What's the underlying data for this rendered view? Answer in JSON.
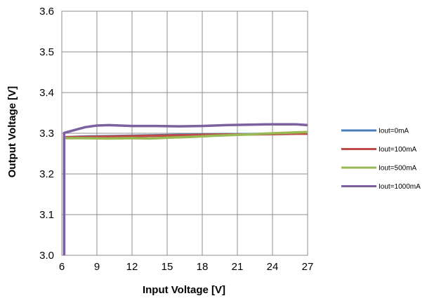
{
  "chart_data": {
    "type": "line",
    "xlabel": "Input Voltage [V]",
    "ylabel": "Output Voltage [V]",
    "xlim": [
      6,
      27
    ],
    "ylim": [
      3.0,
      3.6
    ],
    "x_ticks": [
      "6",
      "9",
      "12",
      "15",
      "18",
      "21",
      "24",
      "27"
    ],
    "y_ticks": [
      "3.0",
      "3.1",
      "3.2",
      "3.3",
      "3.4",
      "3.5",
      "3.6"
    ],
    "grid": true,
    "legend_position": "right",
    "series": [
      {
        "name": "Iout=0mA",
        "color": "#4A7EBB",
        "points": [
          [
            6.2,
            3.0
          ],
          [
            6.2,
            3.29
          ],
          [
            8,
            3.292
          ],
          [
            10,
            3.293
          ],
          [
            12,
            3.294
          ],
          [
            14,
            3.295
          ],
          [
            16,
            3.296
          ],
          [
            18,
            3.297
          ],
          [
            20,
            3.298
          ],
          [
            22,
            3.298
          ],
          [
            24,
            3.299
          ],
          [
            26,
            3.3
          ],
          [
            27,
            3.3
          ]
        ]
      },
      {
        "name": "Iout=100mA",
        "color": "#BE4B48",
        "points": [
          [
            6.2,
            3.0
          ],
          [
            6.2,
            3.29
          ],
          [
            8,
            3.291
          ],
          [
            10,
            3.292
          ],
          [
            12,
            3.293
          ],
          [
            14,
            3.294
          ],
          [
            16,
            3.295
          ],
          [
            18,
            3.296
          ],
          [
            20,
            3.297
          ],
          [
            22,
            3.297
          ],
          [
            24,
            3.298
          ],
          [
            26,
            3.299
          ],
          [
            27,
            3.299
          ]
        ]
      },
      {
        "name": "Iout=500mA",
        "color": "#98B954",
        "points": [
          [
            6.2,
            3.0
          ],
          [
            6.2,
            3.288
          ],
          [
            8,
            3.288
          ],
          [
            10,
            3.287
          ],
          [
            12,
            3.288
          ],
          [
            13.5,
            3.287
          ],
          [
            15,
            3.289
          ],
          [
            17,
            3.291
          ],
          [
            19,
            3.294
          ],
          [
            21,
            3.296
          ],
          [
            22,
            3.297
          ],
          [
            24,
            3.3
          ],
          [
            26,
            3.302
          ],
          [
            27,
            3.303
          ]
        ]
      },
      {
        "name": "Iout=1000mA",
        "color": "#7D60A0",
        "points": [
          [
            6.2,
            3.0
          ],
          [
            6.2,
            3.301
          ],
          [
            8,
            3.315
          ],
          [
            9,
            3.319
          ],
          [
            10,
            3.32
          ],
          [
            12,
            3.318
          ],
          [
            14,
            3.318
          ],
          [
            16,
            3.317
          ],
          [
            18,
            3.318
          ],
          [
            20,
            3.32
          ],
          [
            22,
            3.321
          ],
          [
            24,
            3.322
          ],
          [
            26,
            3.322
          ],
          [
            27,
            3.32
          ]
        ]
      }
    ]
  }
}
